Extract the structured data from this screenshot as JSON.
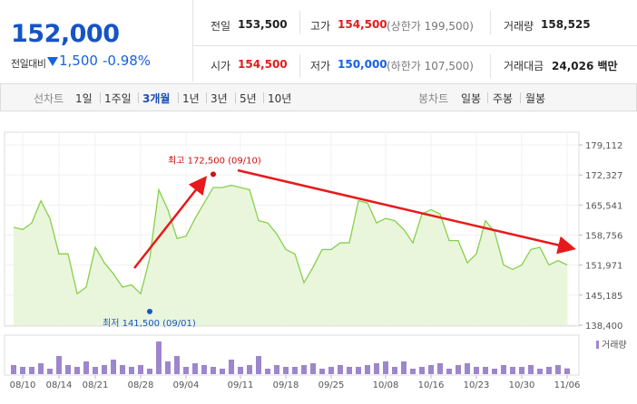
{
  "quote": {
    "price": "152,000",
    "change_label": "전일대비",
    "change": "1,500",
    "change_pct": "-0.98%"
  },
  "info": [
    [
      {
        "label": "전일",
        "value": "153,500"
      },
      {
        "label": "고가",
        "value": "154,500",
        "extra": "(상한가 199,500)"
      },
      {
        "label": "거래량",
        "value": "158,525"
      }
    ],
    [
      {
        "label": "시가",
        "value": "154,500"
      },
      {
        "label": "저가",
        "value": "150,000",
        "extra": "(하한가 107,500)"
      },
      {
        "label": "거래대금",
        "value": "24,026 백만"
      }
    ]
  ],
  "tabs": {
    "line_label": "선차트",
    "line_periods": [
      "1일",
      "1주일",
      "3개월",
      "1년",
      "3년",
      "5년",
      "10년"
    ],
    "selected_index": 2,
    "candle_label": "봉차트",
    "candle_periods": [
      "일봉",
      "주봉",
      "월봉"
    ]
  },
  "chart_data": {
    "type": "line",
    "area": true,
    "color": "#86d04a",
    "fill": "#e9f6dc",
    "categories": [
      null,
      "08/10",
      null,
      null,
      null,
      "08/14",
      null,
      null,
      null,
      "08/21",
      null,
      null,
      null,
      null,
      "08/28",
      null,
      null,
      null,
      null,
      "09/04",
      null,
      null,
      null,
      null,
      null,
      "09/11",
      null,
      null,
      null,
      null,
      "09/18",
      null,
      null,
      null,
      null,
      "09/25",
      null,
      null,
      null,
      null,
      null,
      "10/08",
      null,
      null,
      null,
      null,
      "10/16",
      null,
      null,
      null,
      null,
      "10/23",
      null,
      null,
      null,
      null,
      "10/30",
      null,
      null,
      null,
      null,
      "11/06"
    ],
    "values": [
      160500,
      160000,
      161500,
      166500,
      162500,
      154500,
      154500,
      145500,
      147000,
      156000,
      152500,
      150000,
      147000,
      147500,
      145500,
      153500,
      169000,
      164500,
      158000,
      158500,
      162500,
      166000,
      169500,
      169500,
      170000,
      169500,
      169000,
      162000,
      161500,
      159000,
      155500,
      154500,
      148000,
      151500,
      155500,
      155500,
      157000,
      157000,
      166500,
      166000,
      161500,
      162500,
      162000,
      160000,
      157000,
      163500,
      164500,
      163500,
      157500,
      157500,
      152500,
      154500,
      162000,
      159500,
      152000,
      151000,
      152000,
      155500,
      156000,
      152000,
      153000,
      152000
    ],
    "ylim": [
      138400,
      179112
    ],
    "yticks": [
      {
        "value": 138400,
        "label": "138,400"
      },
      {
        "value": 145185,
        "label": "145,185"
      },
      {
        "value": 151971,
        "label": "151,971"
      },
      {
        "value": 158756,
        "label": "158,756"
      },
      {
        "value": 165541,
        "label": "165,541"
      },
      {
        "value": 172327,
        "label": "172,327"
      },
      {
        "value": 179112,
        "label": "179,112"
      }
    ],
    "annotations": [
      {
        "text": "최고 172,500 (09/10)",
        "value": 172500,
        "color": "#d01010"
      },
      {
        "text": "최저 141,500 (09/01)",
        "value": 141500,
        "color": "#1a55c0"
      }
    ],
    "volume": {
      "name": "거래량",
      "color": "#9d86cc",
      "ylim": [
        0,
        1000000
      ],
      "values": [
        250000,
        200000,
        200000,
        300000,
        150000,
        500000,
        250000,
        200000,
        350000,
        200000,
        250000,
        400000,
        250000,
        200000,
        250000,
        150000,
        900000,
        350000,
        500000,
        200000,
        300000,
        250000,
        200000,
        150000,
        400000,
        200000,
        250000,
        500000,
        150000,
        250000,
        200000,
        200000,
        250000,
        300000,
        150000,
        200000,
        250000,
        200000,
        200000,
        250000,
        300000,
        350000,
        200000,
        350000,
        150000,
        200000,
        250000,
        300000,
        150000,
        250000,
        300000,
        200000,
        200000,
        150000,
        250000,
        200000,
        200000,
        250000,
        150000,
        200000,
        250000,
        158525
      ]
    }
  }
}
